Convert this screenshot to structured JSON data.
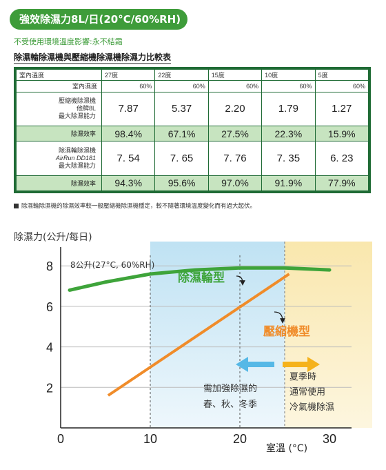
{
  "header": {
    "title": "強效除濕力8L/日(20°C/60%RH)",
    "subtitle": "不受使用環境溫度影響:永不結霜",
    "table_title": "除濕輪除濕機與壓縮機除濕機除濕力比較表"
  },
  "table": {
    "corner_temp_label": "室內溫度",
    "corner_humidity_label": "室內濕度",
    "temperatures": [
      "27度",
      "22度",
      "15度",
      "10度",
      "5度"
    ],
    "humidities": [
      "60%",
      "60%",
      "60%",
      "60%",
      "60%"
    ],
    "rows": [
      {
        "label": [
          "壓縮機除濕機",
          "他牌8L",
          "最大除濕能力"
        ],
        "values": [
          "7.87",
          "5.37",
          "2.20",
          "1.79",
          "1.27"
        ],
        "type": "capacity"
      },
      {
        "label": [
          "除濕效率"
        ],
        "values": [
          "98.4%",
          "67.1%",
          "27.5%",
          "22.3%",
          "15.9%"
        ],
        "type": "efficiency"
      },
      {
        "label": [
          "除濕輪除濕機",
          "AirRun DD181",
          "最大除濕能力"
        ],
        "values": [
          "7. 54",
          "7. 65",
          "7. 76",
          "7. 35",
          "6. 23"
        ],
        "type": "capacity"
      },
      {
        "label": [
          "除濕效率"
        ],
        "values": [
          "94.3%",
          "95.6%",
          "97.0%",
          "91.9%",
          "77.9%"
        ],
        "type": "efficiency"
      }
    ]
  },
  "note": "除濕輪除濕機的除濕效率較一般壓縮機除濕機穩定，較不隨著環境溫度變化而有過大起伏。",
  "chart_data": {
    "type": "line",
    "title": "除濕力(公升/每日)",
    "ylabel": "8公升(27°C, 60%RH)",
    "xlabel": "室溫 (°C)",
    "xlim": [
      0,
      30
    ],
    "ylim": [
      0,
      9.2
    ],
    "x_ticks": [
      0,
      10,
      20,
      30
    ],
    "y_ticks": [
      2,
      4,
      6,
      8
    ],
    "grid": true,
    "series": [
      {
        "name": "除濕輪型",
        "color": "#3ea43a",
        "x": [
          1,
          5,
          10,
          15,
          20,
          25,
          30
        ],
        "y": [
          6.8,
          7.2,
          7.6,
          7.8,
          7.9,
          7.9,
          7.8
        ]
      },
      {
        "name": "壓縮機型",
        "color": "#f08c2a",
        "x": [
          5.3,
          25.5
        ],
        "y": [
          1.6,
          7.6
        ]
      }
    ],
    "annotations": {
      "spring_text": [
        "需加強除濕的",
        "春、秋、冬季"
      ],
      "summer_text": [
        "夏季時",
        "通常使用",
        "冷氣機除濕"
      ]
    },
    "colors": {
      "blue_zone": "#cfe8f5",
      "yellow_zone": "#fbefc5",
      "blue_arrow": "#55b8e6",
      "yellow_arrow": "#f5b21b",
      "header_green": "#3e9c3a"
    }
  }
}
